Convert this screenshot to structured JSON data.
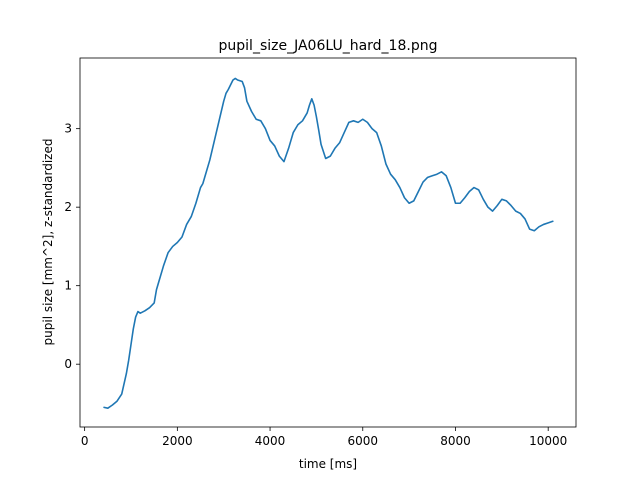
{
  "chart_data": {
    "type": "line",
    "title": "pupil_size_JA06LU_hard_18.png",
    "xlabel": "time [ms]",
    "ylabel": "pupil size [mm^2], z-standardized",
    "xlim": [
      -100,
      10600
    ],
    "ylim": [
      -0.8,
      3.9
    ],
    "xticks": [
      0,
      2000,
      4000,
      6000,
      8000,
      10000
    ],
    "yticks": [
      0,
      1,
      2,
      3
    ],
    "xtick_labels": [
      "0",
      "2000",
      "4000",
      "6000",
      "8000",
      "10000"
    ],
    "ytick_labels": [
      "0",
      "1",
      "2",
      "3"
    ],
    "grid": false,
    "legend": "none",
    "series": [
      {
        "color": "#1f77b4",
        "x": [
          420,
          500,
          600,
          700,
          800,
          900,
          950,
          1000,
          1050,
          1100,
          1150,
          1200,
          1300,
          1400,
          1500,
          1550,
          1600,
          1700,
          1800,
          1900,
          2000,
          2100,
          2200,
          2300,
          2400,
          2500,
          2550,
          2600,
          2700,
          2800,
          2900,
          3000,
          3050,
          3100,
          3200,
          3250,
          3300,
          3400,
          3450,
          3500,
          3600,
          3700,
          3800,
          3900,
          4000,
          4100,
          4200,
          4300,
          4400,
          4450,
          4500,
          4600,
          4700,
          4800,
          4850,
          4900,
          4950,
          5000,
          5050,
          5100,
          5200,
          5300,
          5400,
          5500,
          5600,
          5700,
          5800,
          5900,
          6000,
          6100,
          6200,
          6300,
          6400,
          6500,
          6600,
          6700,
          6800,
          6900,
          7000,
          7100,
          7200,
          7300,
          7400,
          7500,
          7600,
          7700,
          7800,
          7900,
          8000,
          8100,
          8200,
          8300,
          8400,
          8500,
          8600,
          8700,
          8800,
          8900,
          9000,
          9100,
          9200,
          9300,
          9400,
          9500,
          9600,
          9700,
          9800,
          9900,
          10000,
          10100
        ],
        "y": [
          -0.55,
          -0.56,
          -0.52,
          -0.47,
          -0.38,
          -0.12,
          0.05,
          0.25,
          0.45,
          0.6,
          0.67,
          0.65,
          0.68,
          0.72,
          0.78,
          0.95,
          1.05,
          1.25,
          1.42,
          1.5,
          1.55,
          1.62,
          1.78,
          1.88,
          2.05,
          2.25,
          2.3,
          2.4,
          2.6,
          2.85,
          3.1,
          3.35,
          3.45,
          3.5,
          3.62,
          3.64,
          3.62,
          3.6,
          3.52,
          3.35,
          3.22,
          3.12,
          3.1,
          3.0,
          2.85,
          2.78,
          2.65,
          2.58,
          2.75,
          2.85,
          2.95,
          3.05,
          3.1,
          3.2,
          3.3,
          3.38,
          3.3,
          3.15,
          2.98,
          2.8,
          2.62,
          2.65,
          2.75,
          2.82,
          2.95,
          3.08,
          3.1,
          3.08,
          3.12,
          3.08,
          3.0,
          2.95,
          2.78,
          2.55,
          2.42,
          2.35,
          2.25,
          2.12,
          2.05,
          2.08,
          2.2,
          2.32,
          2.38,
          2.4,
          2.42,
          2.45,
          2.4,
          2.25,
          2.05,
          2.05,
          2.12,
          2.2,
          2.25,
          2.22,
          2.1,
          2.0,
          1.95,
          2.02,
          2.1,
          2.08,
          2.02,
          1.95,
          1.92,
          1.85,
          1.72,
          1.7,
          1.75,
          1.78,
          1.8,
          1.82
        ]
      }
    ]
  }
}
